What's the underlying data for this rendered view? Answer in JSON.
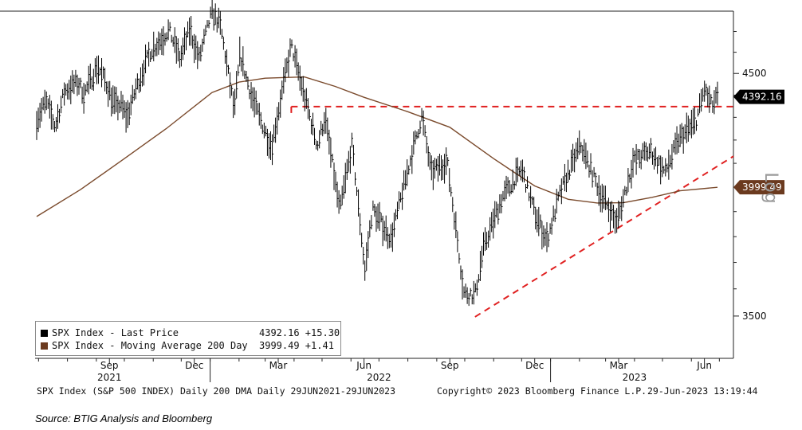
{
  "chart_data": {
    "type": "line",
    "scale": "log",
    "ylim": [
      3350,
      4800
    ],
    "y_ticks": [
      3500,
      4500
    ],
    "y_axis_label": "Log",
    "x_range": [
      "2021-06-29",
      "2023-06-29"
    ],
    "month_ticks": [
      "Sep",
      "Dec",
      "Mar",
      "Jun",
      "Sep",
      "Dec",
      "Mar",
      "Jun"
    ],
    "year_labels": [
      "2021",
      "2022",
      "2023"
    ],
    "series": [
      {
        "name": "SPX Index - Last Price",
        "color": "#000000",
        "style": "ohlc-bars",
        "points": [
          [
            "2021-06-29",
            4290
          ],
          [
            "2021-07-09",
            4370
          ],
          [
            "2021-07-19",
            4258
          ],
          [
            "2021-07-29",
            4420
          ],
          [
            "2021-08-12",
            4460
          ],
          [
            "2021-08-19",
            4405
          ],
          [
            "2021-09-02",
            4535
          ],
          [
            "2021-09-10",
            4470
          ],
          [
            "2021-09-20",
            4358
          ],
          [
            "2021-09-28",
            4352
          ],
          [
            "2021-10-04",
            4300
          ],
          [
            "2021-10-14",
            4438
          ],
          [
            "2021-10-29",
            4605
          ],
          [
            "2021-11-18",
            4705
          ],
          [
            "2021-11-30",
            4567
          ],
          [
            "2021-12-10",
            4712
          ],
          [
            "2021-12-20",
            4568
          ],
          [
            "2022-01-03",
            4796
          ],
          [
            "2022-01-12",
            4726
          ],
          [
            "2022-01-27",
            4326
          ],
          [
            "2022-02-02",
            4589
          ],
          [
            "2022-02-14",
            4401
          ],
          [
            "2022-02-24",
            4288
          ],
          [
            "2022-03-08",
            4170
          ],
          [
            "2022-03-29",
            4631
          ],
          [
            "2022-04-12",
            4397
          ],
          [
            "2022-04-26",
            4175
          ],
          [
            "2022-05-04",
            4300
          ],
          [
            "2022-05-20",
            3901
          ],
          [
            "2022-06-02",
            4176
          ],
          [
            "2022-06-16",
            3666
          ],
          [
            "2022-06-24",
            3912
          ],
          [
            "2022-07-14",
            3790
          ],
          [
            "2022-08-16",
            4305
          ],
          [
            "2022-08-26",
            4057
          ],
          [
            "2022-09-12",
            4110
          ],
          [
            "2022-09-30",
            3586
          ],
          [
            "2022-10-12",
            3577
          ],
          [
            "2022-10-21",
            3752
          ],
          [
            "2022-11-10",
            3956
          ],
          [
            "2022-12-01",
            4076
          ],
          [
            "2022-12-15",
            3895
          ],
          [
            "2022-12-28",
            3783
          ],
          [
            "2023-01-12",
            3983
          ],
          [
            "2023-02-02",
            4180
          ],
          [
            "2023-02-24",
            3970
          ],
          [
            "2023-03-13",
            3855
          ],
          [
            "2023-03-31",
            4109
          ],
          [
            "2023-04-18",
            4154
          ],
          [
            "2023-05-04",
            4061
          ],
          [
            "2023-05-18",
            4198
          ],
          [
            "2023-06-06",
            4283
          ],
          [
            "2023-06-15",
            4426
          ],
          [
            "2023-06-23",
            4348
          ],
          [
            "2023-06-29",
            4392
          ]
        ]
      },
      {
        "name": "SPX Index - Moving Average 200 Day",
        "color": "#7a4a2c",
        "style": "line",
        "points": [
          [
            "2021-06-29",
            3880
          ],
          [
            "2021-08-15",
            3990
          ],
          [
            "2021-10-01",
            4120
          ],
          [
            "2021-11-15",
            4250
          ],
          [
            "2022-01-03",
            4412
          ],
          [
            "2022-02-01",
            4460
          ],
          [
            "2022-03-01",
            4478
          ],
          [
            "2022-04-12",
            4484
          ],
          [
            "2022-05-15",
            4440
          ],
          [
            "2022-06-15",
            4390
          ],
          [
            "2022-08-01",
            4325
          ],
          [
            "2022-09-15",
            4256
          ],
          [
            "2022-11-01",
            4120
          ],
          [
            "2022-12-15",
            4005
          ],
          [
            "2023-01-20",
            3950
          ],
          [
            "2023-02-20",
            3935
          ],
          [
            "2023-03-20",
            3936
          ],
          [
            "2023-04-20",
            3958
          ],
          [
            "2023-05-20",
            3985
          ],
          [
            "2023-06-29",
            3999.49
          ]
        ]
      }
    ],
    "annotations": [
      {
        "type": "horizontal-dashed",
        "color": "#e02020",
        "x0": "2022-03-29",
        "x1": "2023-06-29",
        "y": 4348
      },
      {
        "type": "trend-dashed",
        "color": "#e02020",
        "x0": "2022-10-12",
        "y0": 3497,
        "x1": "2023-06-29",
        "y1": 4130
      }
    ],
    "last_value_tags": [
      {
        "series": "SPX Index - Last Price",
        "label": "4392.16",
        "value": 4392.16,
        "bg": "#000000",
        "fg": "#ffffff"
      },
      {
        "series": "SPX Index - Moving Average 200 Day",
        "label": "3999.49",
        "value": 3999.49,
        "bg": "#6b3a1f",
        "fg": "#ffffff"
      }
    ]
  },
  "legend": {
    "items": [
      {
        "label": "SPX Index - Last Price",
        "value": "4392.16 +15.30",
        "color": "#000000"
      },
      {
        "label": "SPX Index - Moving Average 200 Day",
        "value": "3999.49 +1.41",
        "color": "#6b3a1f"
      }
    ]
  },
  "footer": {
    "left": "SPX Index (S&P 500 INDEX) Daily 200 DMA  Daily 29JUN2021-29JUN2023",
    "middle": "Copyright© 2023 Bloomberg Finance L.P.",
    "right": "29-Jun-2023 13:19:44"
  },
  "source": "Source: BTIG Analysis and Bloomberg"
}
